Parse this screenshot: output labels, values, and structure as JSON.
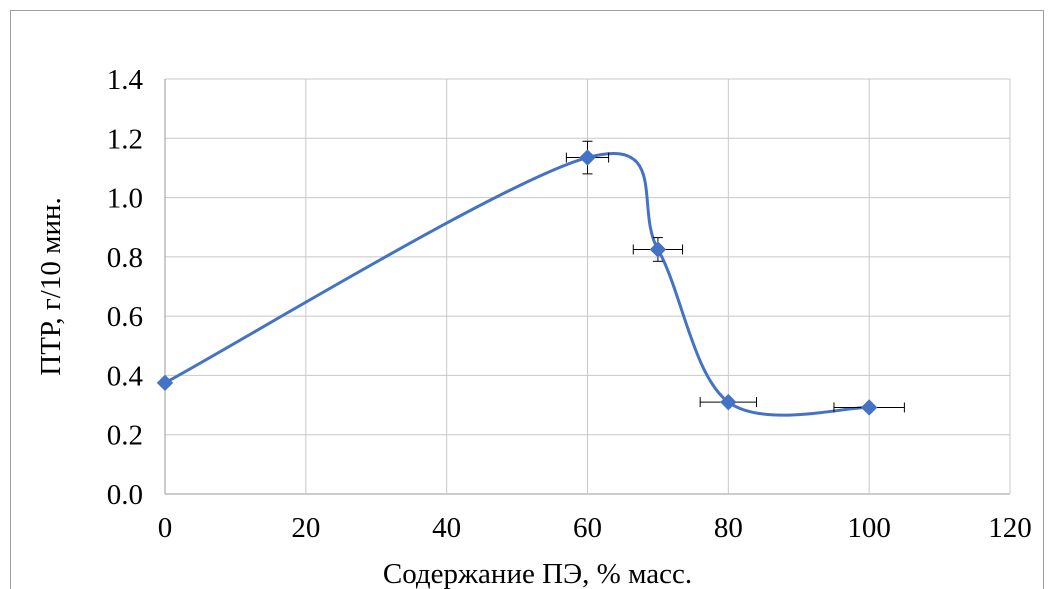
{
  "chart_data": {
    "type": "line",
    "title": "",
    "xlabel": "Содержание ПЭ, % масс.",
    "ylabel": "ПТР, г/10 мин.",
    "xlim": [
      0,
      120
    ],
    "ylim": [
      0,
      1.4
    ],
    "x_ticks": [
      "0",
      "20",
      "40",
      "60",
      "80",
      "100",
      "120"
    ],
    "y_ticks": [
      "0.0",
      "0.2",
      "0.4",
      "0.6",
      "0.8",
      "1.0",
      "1.2",
      "1.4"
    ],
    "grid": true,
    "smooth": true,
    "series": [
      {
        "x": [
          0,
          60,
          70,
          80,
          100
        ],
        "y": [
          0.375,
          1.135,
          0.825,
          0.31,
          0.292
        ],
        "y_err": [
          0.01,
          0.055,
          0.04,
          0.005,
          0.005
        ],
        "x_err": [
          0,
          3,
          3.5,
          4,
          5
        ]
      }
    ],
    "colors": {
      "series": "#4472c4",
      "grid": "#c8c8c8",
      "errorbar": "#000000"
    }
  }
}
